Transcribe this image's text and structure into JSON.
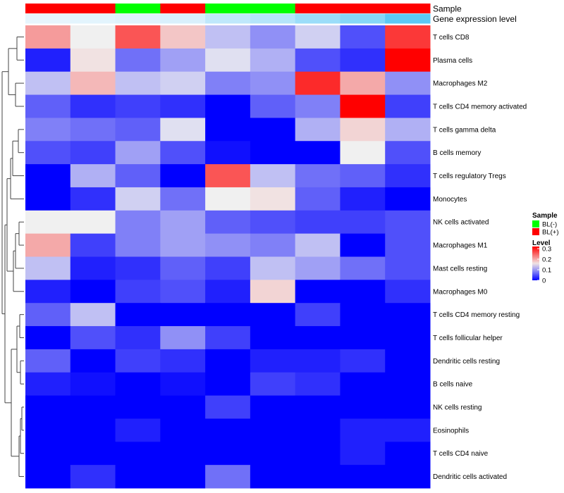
{
  "chart_data": {
    "type": "heatmap",
    "annotation_labels": [
      "Sample",
      "Gene expression level"
    ],
    "sample_groups": [
      "BL(+)",
      "BL(+)",
      "BL(-)",
      "BL(+)",
      "BL(-)",
      "BL(-)",
      "BL(+)",
      "BL(+)",
      "BL(+)"
    ],
    "gene_expression_level": [
      0.02,
      0.05,
      0.08,
      0.12,
      0.3,
      0.38,
      0.55,
      0.7,
      1.0
    ],
    "rows": [
      "T cells CD8",
      "Plasma cells",
      "Macrophages M2",
      "T cells CD4 memory activated",
      "T cells gamma delta",
      "B cells memory",
      "T cells regulatory  Tregs",
      "Monocytes",
      "NK cells activated",
      "Macrophages M1",
      "Mast cells resting",
      "Macrophages M0",
      "T cells CD4 memory resting",
      "T cells follicular helper",
      "Dendritic cells resting",
      "B cells naive",
      "NK cells resting",
      "Eosinophils",
      "T cells CD4 naive",
      "Dendritic cells activated"
    ],
    "values": [
      [
        0.21,
        0.15,
        0.26,
        0.18,
        0.12,
        0.09,
        0.13,
        0.05,
        0.28
      ],
      [
        0.02,
        0.16,
        0.07,
        0.1,
        0.14,
        0.11,
        0.05,
        0.03,
        0.32
      ],
      [
        0.12,
        0.19,
        0.12,
        0.13,
        0.08,
        0.09,
        0.29,
        0.2,
        0.09
      ],
      [
        0.06,
        0.03,
        0.04,
        0.03,
        0.0,
        0.06,
        0.08,
        0.32,
        0.04
      ],
      [
        0.08,
        0.07,
        0.06,
        0.14,
        0.0,
        0.0,
        0.11,
        0.17,
        0.11
      ],
      [
        0.05,
        0.04,
        0.1,
        0.05,
        0.01,
        0.0,
        0.0,
        0.15,
        0.05
      ],
      [
        0.0,
        0.11,
        0.06,
        0.0,
        0.26,
        0.12,
        0.07,
        0.06,
        0.03
      ],
      [
        0.0,
        0.03,
        0.13,
        0.07,
        0.15,
        0.16,
        0.06,
        0.02,
        0.0
      ],
      [
        0.15,
        0.15,
        0.08,
        0.1,
        0.06,
        0.05,
        0.04,
        0.04,
        0.05
      ],
      [
        0.2,
        0.04,
        0.08,
        0.1,
        0.09,
        0.08,
        0.12,
        0.0,
        0.05
      ],
      [
        0.12,
        0.02,
        0.03,
        0.06,
        0.04,
        0.12,
        0.1,
        0.07,
        0.05
      ],
      [
        0.02,
        0.0,
        0.04,
        0.05,
        0.02,
        0.17,
        0.0,
        0.0,
        0.03
      ],
      [
        0.06,
        0.12,
        0.0,
        0.0,
        0.0,
        0.0,
        0.04,
        0.0,
        0.0
      ],
      [
        0.0,
        0.05,
        0.03,
        0.09,
        0.04,
        0.0,
        0.0,
        0.0,
        0.0
      ],
      [
        0.06,
        0.0,
        0.04,
        0.03,
        0.0,
        0.02,
        0.02,
        0.03,
        0.0
      ],
      [
        0.02,
        0.01,
        0.0,
        0.01,
        0.0,
        0.04,
        0.03,
        0.0,
        0.0
      ],
      [
        0.0,
        0.0,
        0.0,
        0.0,
        0.04,
        0.0,
        0.0,
        0.0,
        0.0
      ],
      [
        0.0,
        0.0,
        0.02,
        0.0,
        0.0,
        0.0,
        0.0,
        0.02,
        0.02
      ],
      [
        0.0,
        0.0,
        0.0,
        0.0,
        0.0,
        0.0,
        0.0,
        0.02,
        0.0
      ],
      [
        0.0,
        0.03,
        0.0,
        0.0,
        0.07,
        0.0,
        0.0,
        0.0,
        0.0
      ]
    ],
    "color_scale": {
      "min": 0,
      "mid": 0.15,
      "max": 0.32,
      "low_color": "#0000ff",
      "mid_color": "#f0f0f0",
      "high_color": "#ff0000"
    },
    "legend": {
      "sample_title": "Sample",
      "sample_entries": [
        {
          "label": "BL(-)",
          "color": "#00ff00"
        },
        {
          "label": "BL(+)",
          "color": "#ff0000"
        }
      ],
      "level_title": "Level",
      "level_ticks": [
        {
          "value": 0.3,
          "label": "0.3"
        },
        {
          "value": 0.2,
          "label": "0.2"
        },
        {
          "value": 0.1,
          "label": "0.1"
        },
        {
          "value": 0.0,
          "label": "0"
        }
      ],
      "placement": "right"
    },
    "gene_expression_colors": {
      "low": "#eaf6fd",
      "high": "#5bc8f5"
    },
    "row_dendrogram": true,
    "grid": false
  }
}
